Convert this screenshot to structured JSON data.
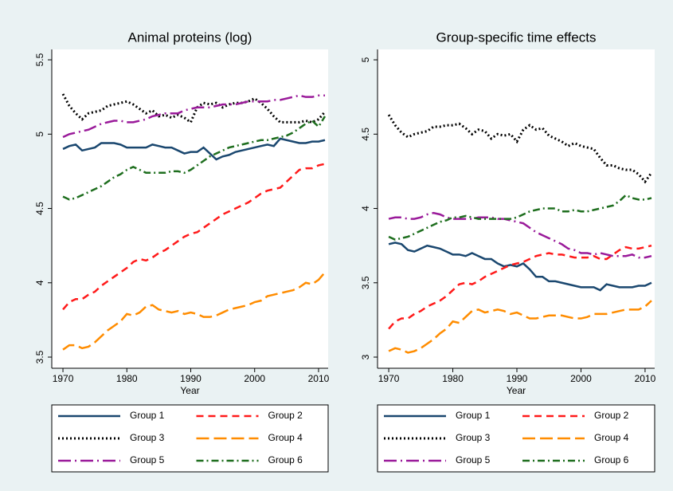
{
  "chart_data": [
    {
      "type": "line",
      "title": "Animal proteins (log)",
      "x_label": "Year",
      "x": [
        1970,
        1971,
        1972,
        1973,
        1974,
        1975,
        1976,
        1977,
        1978,
        1979,
        1980,
        1981,
        1982,
        1983,
        1984,
        1985,
        1986,
        1987,
        1988,
        1989,
        1990,
        1991,
        1992,
        1993,
        1994,
        1995,
        1996,
        1997,
        1998,
        1999,
        2000,
        2001,
        2002,
        2003,
        2004,
        2005,
        2006,
        2007,
        2008,
        2009,
        2010,
        2011
      ],
      "xlim": [
        1968.25,
        2011.5
      ],
      "xticks": [
        1970,
        1980,
        1990,
        2000,
        2010
      ],
      "ylim": [
        3.425,
        5.57
      ],
      "yticks": [
        3.5,
        4,
        4.5,
        5,
        5.5
      ],
      "grid": false,
      "series": [
        {
          "name": "Group 1",
          "color": "#1a476f",
          "dash": "none",
          "values": [
            4.9,
            4.92,
            4.93,
            4.89,
            4.9,
            4.91,
            4.94,
            4.94,
            4.94,
            4.93,
            4.91,
            4.91,
            4.91,
            4.91,
            4.93,
            4.92,
            4.91,
            4.91,
            4.89,
            4.87,
            4.88,
            4.88,
            4.91,
            4.87,
            4.83,
            4.85,
            4.86,
            4.88,
            4.89,
            4.9,
            4.91,
            4.92,
            4.93,
            4.92,
            4.97,
            4.96,
            4.95,
            4.94,
            4.94,
            4.95,
            4.95,
            4.96
          ]
        },
        {
          "name": "Group 2",
          "color": "#ff1a1a",
          "dash": "9,6",
          "values": [
            3.82,
            3.87,
            3.89,
            3.89,
            3.92,
            3.94,
            3.98,
            4.01,
            4.04,
            4.07,
            4.1,
            4.14,
            4.16,
            4.15,
            4.17,
            4.2,
            4.22,
            4.25,
            4.28,
            4.31,
            4.33,
            4.34,
            4.37,
            4.4,
            4.43,
            4.46,
            4.48,
            4.5,
            4.52,
            4.54,
            4.57,
            4.6,
            4.62,
            4.63,
            4.64,
            4.68,
            4.72,
            4.76,
            4.77,
            4.77,
            4.79,
            4.8
          ]
        },
        {
          "name": "Group 3",
          "color": "#000000",
          "dash": "2,3",
          "values": [
            5.27,
            5.19,
            5.14,
            5.1,
            5.14,
            5.15,
            5.16,
            5.19,
            5.2,
            5.21,
            5.22,
            5.2,
            5.17,
            5.14,
            5.16,
            5.12,
            5.13,
            5.11,
            5.13,
            5.11,
            5.08,
            5.18,
            5.21,
            5.2,
            5.21,
            5.18,
            5.2,
            5.21,
            5.21,
            5.22,
            5.24,
            5.21,
            5.17,
            5.12,
            5.08,
            5.08,
            5.08,
            5.08,
            5.09,
            5.08,
            5.1,
            5.15
          ]
        },
        {
          "name": "Group 4",
          "color": "#ff8c00",
          "dash": "16,6",
          "values": [
            3.55,
            3.58,
            3.58,
            3.56,
            3.57,
            3.6,
            3.64,
            3.68,
            3.71,
            3.74,
            3.79,
            3.78,
            3.8,
            3.84,
            3.85,
            3.82,
            3.81,
            3.8,
            3.81,
            3.79,
            3.8,
            3.79,
            3.77,
            3.77,
            3.78,
            3.8,
            3.82,
            3.83,
            3.84,
            3.85,
            3.87,
            3.88,
            3.91,
            3.92,
            3.93,
            3.94,
            3.95,
            3.97,
            4.0,
            3.99,
            4.02,
            4.07
          ]
        },
        {
          "name": "Group 5",
          "color": "#9a1a9a",
          "dash": "16,5,2,5",
          "values": [
            4.98,
            5.0,
            5.01,
            5.02,
            5.03,
            5.05,
            5.07,
            5.08,
            5.09,
            5.09,
            5.08,
            5.08,
            5.09,
            5.1,
            5.12,
            5.13,
            5.14,
            5.14,
            5.14,
            5.16,
            5.17,
            5.18,
            5.18,
            5.18,
            5.19,
            5.2,
            5.2,
            5.2,
            5.21,
            5.22,
            5.22,
            5.22,
            5.22,
            5.23,
            5.23,
            5.24,
            5.25,
            5.26,
            5.25,
            5.25,
            5.26,
            5.26
          ]
        },
        {
          "name": "Group 6",
          "color": "#1e6e1e",
          "dash": "9,4,2,4",
          "values": [
            4.58,
            4.56,
            4.57,
            4.59,
            4.61,
            4.63,
            4.65,
            4.68,
            4.71,
            4.73,
            4.76,
            4.78,
            4.76,
            4.74,
            4.74,
            4.74,
            4.74,
            4.75,
            4.75,
            4.74,
            4.76,
            4.79,
            4.82,
            4.85,
            4.87,
            4.89,
            4.91,
            4.92,
            4.93,
            4.94,
            4.95,
            4.96,
            4.96,
            4.97,
            4.98,
            4.99,
            5.01,
            5.04,
            5.07,
            5.09,
            5.05,
            5.12
          ]
        }
      ]
    },
    {
      "type": "line",
      "title": "Group-specific time effects",
      "x_label": "Year",
      "x": [
        1970,
        1971,
        1972,
        1973,
        1974,
        1975,
        1976,
        1977,
        1978,
        1979,
        1980,
        1981,
        1982,
        1983,
        1984,
        1985,
        1986,
        1987,
        1988,
        1989,
        1990,
        1991,
        1992,
        1993,
        1994,
        1995,
        1996,
        1997,
        1998,
        1999,
        2000,
        2001,
        2002,
        2003,
        2004,
        2005,
        2006,
        2007,
        2008,
        2009,
        2010,
        2011
      ],
      "xlim": [
        1968.25,
        2011.5
      ],
      "xticks": [
        1970,
        1980,
        1990,
        2000,
        2010
      ],
      "ylim": [
        2.925,
        5.07
      ],
      "yticks": [
        3,
        3.5,
        4,
        4.5,
        5
      ],
      "grid": false,
      "series": [
        {
          "name": "Group 1",
          "color": "#1a476f",
          "dash": "none",
          "values": [
            3.76,
            3.77,
            3.76,
            3.72,
            3.71,
            3.73,
            3.75,
            3.74,
            3.73,
            3.71,
            3.69,
            3.69,
            3.68,
            3.7,
            3.68,
            3.66,
            3.66,
            3.63,
            3.61,
            3.62,
            3.61,
            3.63,
            3.59,
            3.54,
            3.54,
            3.51,
            3.51,
            3.5,
            3.49,
            3.48,
            3.47,
            3.47,
            3.47,
            3.45,
            3.49,
            3.48,
            3.47,
            3.47,
            3.47,
            3.48,
            3.48,
            3.5
          ]
        },
        {
          "name": "Group 2",
          "color": "#ff1a1a",
          "dash": "9,6",
          "values": [
            3.19,
            3.24,
            3.26,
            3.26,
            3.29,
            3.31,
            3.34,
            3.36,
            3.38,
            3.41,
            3.45,
            3.49,
            3.5,
            3.49,
            3.51,
            3.54,
            3.56,
            3.58,
            3.6,
            3.62,
            3.63,
            3.64,
            3.66,
            3.68,
            3.69,
            3.7,
            3.69,
            3.69,
            3.68,
            3.67,
            3.67,
            3.67,
            3.68,
            3.66,
            3.66,
            3.69,
            3.72,
            3.74,
            3.73,
            3.73,
            3.74,
            3.75
          ]
        },
        {
          "name": "Group 3",
          "color": "#000000",
          "dash": "2,3",
          "values": [
            4.63,
            4.56,
            4.51,
            4.48,
            4.5,
            4.51,
            4.52,
            4.55,
            4.55,
            4.56,
            4.56,
            4.57,
            4.54,
            4.5,
            4.53,
            4.52,
            4.47,
            4.5,
            4.49,
            4.5,
            4.45,
            4.53,
            4.56,
            4.53,
            4.54,
            4.49,
            4.47,
            4.45,
            4.42,
            4.44,
            4.42,
            4.41,
            4.4,
            4.34,
            4.29,
            4.29,
            4.27,
            4.26,
            4.26,
            4.23,
            4.18,
            4.24
          ]
        },
        {
          "name": "Group 4",
          "color": "#ff8c00",
          "dash": "16,6",
          "values": [
            3.04,
            3.06,
            3.05,
            3.03,
            3.04,
            3.06,
            3.09,
            3.12,
            3.16,
            3.19,
            3.24,
            3.23,
            3.27,
            3.31,
            3.32,
            3.3,
            3.31,
            3.32,
            3.31,
            3.29,
            3.3,
            3.28,
            3.26,
            3.26,
            3.27,
            3.28,
            3.28,
            3.28,
            3.27,
            3.26,
            3.26,
            3.27,
            3.29,
            3.29,
            3.29,
            3.3,
            3.31,
            3.32,
            3.32,
            3.32,
            3.34,
            3.38
          ]
        },
        {
          "name": "Group 5",
          "color": "#9a1a9a",
          "dash": "16,5,2,5",
          "values": [
            3.93,
            3.94,
            3.94,
            3.93,
            3.93,
            3.94,
            3.96,
            3.97,
            3.96,
            3.94,
            3.93,
            3.93,
            3.93,
            3.93,
            3.94,
            3.94,
            3.94,
            3.93,
            3.93,
            3.92,
            3.91,
            3.9,
            3.87,
            3.84,
            3.82,
            3.8,
            3.78,
            3.76,
            3.73,
            3.72,
            3.7,
            3.7,
            3.69,
            3.7,
            3.69,
            3.68,
            3.68,
            3.68,
            3.69,
            3.67,
            3.67,
            3.68
          ]
        },
        {
          "name": "Group 6",
          "color": "#1e6e1e",
          "dash": "9,4,2,4",
          "values": [
            3.81,
            3.79,
            3.8,
            3.81,
            3.83,
            3.85,
            3.87,
            3.89,
            3.91,
            3.92,
            3.94,
            3.94,
            3.95,
            3.94,
            3.93,
            3.93,
            3.93,
            3.93,
            3.93,
            3.93,
            3.94,
            3.96,
            3.98,
            3.99,
            4.0,
            4.0,
            4.0,
            3.98,
            3.98,
            3.99,
            3.98,
            3.98,
            3.99,
            4.0,
            4.01,
            4.02,
            4.05,
            4.09,
            4.07,
            4.06,
            4.06,
            4.07
          ]
        }
      ]
    }
  ]
}
